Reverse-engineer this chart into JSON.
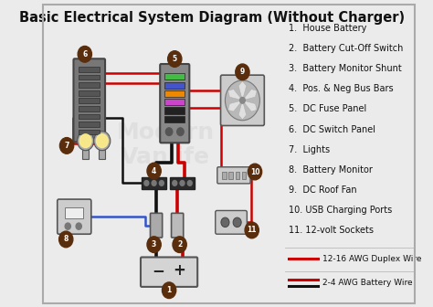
{
  "title": "Basic Electrical System Diagram (Without Charger)",
  "bg_color": "#ebebeb",
  "legend_items": [
    "1.  House Battery",
    "2.  Battery Cut-Off Switch",
    "3.  Battery Monitor Shunt",
    "4.  Pos. & Neg Bus Bars",
    "5.  DC Fuse Panel",
    "6.  DC Switch Panel",
    "7.  Lights",
    "8.  Battery Monitor",
    "9.  DC Roof Fan",
    "10. USB Charging Ports",
    "11. 12-volt Sockets"
  ],
  "wire_legend_1_label": "12-16 AWG Duplex Wire",
  "wire_legend_2_label": "2-4 AWG Battery Wire",
  "title_fontsize": 10.5,
  "label_fontsize": 7.0,
  "number_circle_color": "#5a2d0c",
  "number_text_color": "#ffffff",
  "red": "#cc0000",
  "black": "#111111",
  "blue": "#3355cc",
  "fuse_colors": [
    "#44bb44",
    "#4455cc",
    "#ee8800",
    "#cc44cc",
    "#222222",
    "#222222"
  ]
}
